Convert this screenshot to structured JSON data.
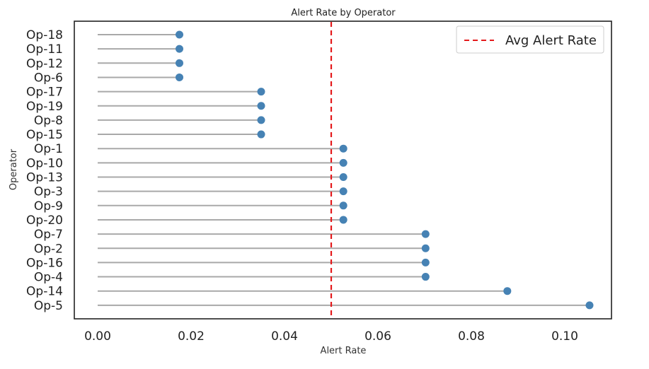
{
  "chart_data": {
    "type": "lollipop",
    "title": "Alert Rate by Operator",
    "xlabel": "Alert Rate",
    "ylabel": "Operator",
    "xlim": [
      -0.005,
      0.11
    ],
    "xticks": [
      0.0,
      0.02,
      0.04,
      0.06,
      0.08,
      0.1
    ],
    "xtick_labels": [
      "0.00",
      "0.02",
      "0.04",
      "0.06",
      "0.08",
      "0.10"
    ],
    "categories": [
      "Op-18",
      "Op-11",
      "Op-12",
      "Op-6",
      "Op-17",
      "Op-19",
      "Op-8",
      "Op-15",
      "Op-1",
      "Op-10",
      "Op-13",
      "Op-3",
      "Op-9",
      "Op-20",
      "Op-7",
      "Op-2",
      "Op-16",
      "Op-4",
      "Op-14",
      "Op-5"
    ],
    "values": [
      0.0175,
      0.0175,
      0.0175,
      0.0175,
      0.035,
      0.035,
      0.035,
      0.035,
      0.0526,
      0.0526,
      0.0526,
      0.0526,
      0.0526,
      0.0526,
      0.0702,
      0.0702,
      0.0702,
      0.0702,
      0.0877,
      0.1053
    ],
    "reference_line": {
      "label": "Avg Alert Rate",
      "value": 0.05,
      "style": "dashed",
      "color": "#e41a1c"
    },
    "grid": false,
    "legend_position": "top-right",
    "colors": {
      "marker": "#4682b4",
      "stem": "#a9a9a9",
      "reference": "#e41a1c",
      "frame": "#222222"
    }
  }
}
